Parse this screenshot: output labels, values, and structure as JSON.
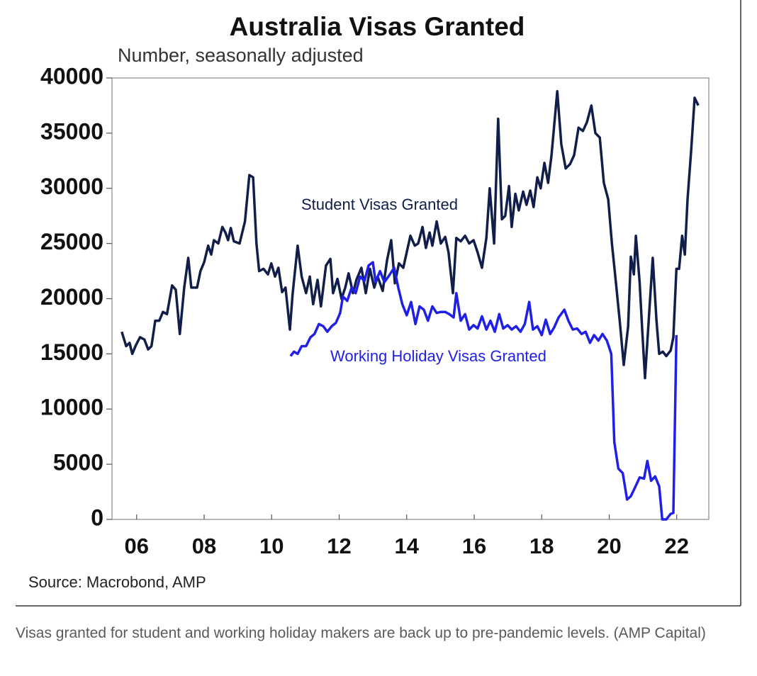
{
  "chart_data": {
    "type": "line",
    "title": "Australia Visas Granted",
    "subtitle": "Number, seasonally adjusted",
    "source": "Source: Macrobond, AMP",
    "xlim": [
      2005.27,
      2022.95
    ],
    "xticks": [
      {
        "value": 2006,
        "label": "06"
      },
      {
        "value": 2008,
        "label": "08"
      },
      {
        "value": 2010,
        "label": "10"
      },
      {
        "value": 2012,
        "label": "12"
      },
      {
        "value": 2014,
        "label": "14"
      },
      {
        "value": 2016,
        "label": "16"
      },
      {
        "value": 2018,
        "label": "18"
      },
      {
        "value": 2020,
        "label": "20"
      },
      {
        "value": 2022,
        "label": "22"
      }
    ],
    "ylim": [
      0,
      40000
    ],
    "yticks": [
      0,
      5000,
      10000,
      15000,
      20000,
      25000,
      30000,
      35000,
      40000
    ],
    "grid": false,
    "series": [
      {
        "name": "Student Visas Granted",
        "color": "#111e4a",
        "x": [
          2005.56,
          2005.69,
          2005.79,
          2005.87,
          2005.98,
          2006.1,
          2006.23,
          2006.34,
          2006.44,
          2006.55,
          2006.67,
          2006.78,
          2006.9,
          2007.05,
          2007.16,
          2007.28,
          2007.41,
          2007.53,
          2007.62,
          2007.79,
          2007.89,
          2008.0,
          2008.12,
          2008.21,
          2008.29,
          2008.42,
          2008.54,
          2008.63,
          2008.71,
          2008.79,
          2008.88,
          2009.05,
          2009.21,
          2009.34,
          2009.45,
          2009.55,
          2009.63,
          2009.76,
          2009.89,
          2009.99,
          2010.1,
          2010.2,
          2010.31,
          2010.41,
          2010.54,
          2010.62,
          2010.77,
          2010.89,
          2011.02,
          2011.13,
          2011.23,
          2011.36,
          2011.46,
          2011.61,
          2011.74,
          2011.82,
          2011.95,
          2012.07,
          2012.18,
          2012.28,
          2012.41,
          2012.51,
          2012.66,
          2012.79,
          2012.91,
          2013.04,
          2013.14,
          2013.29,
          2013.42,
          2013.54,
          2013.65,
          2013.77,
          2013.9,
          2014.0,
          2014.11,
          2014.24,
          2014.34,
          2014.47,
          2014.57,
          2014.68,
          2014.76,
          2014.89,
          2015.01,
          2015.14,
          2015.24,
          2015.37,
          2015.47,
          2015.6,
          2015.73,
          2015.85,
          2015.98,
          2016.1,
          2016.23,
          2016.36,
          2016.46,
          2016.59,
          2016.71,
          2016.82,
          2016.92,
          2017.03,
          2017.11,
          2017.22,
          2017.32,
          2017.45,
          2017.55,
          2017.66,
          2017.76,
          2017.87,
          2017.97,
          2018.08,
          2018.19,
          2018.29,
          2018.46,
          2018.58,
          2018.71,
          2018.84,
          2018.96,
          2019.09,
          2019.22,
          2019.34,
          2019.47,
          2019.59,
          2019.72,
          2019.84,
          2019.97,
          2020.08,
          2020.18,
          2020.31,
          2020.43,
          2020.56,
          2020.64,
          2020.73,
          2020.79,
          2020.9,
          2020.98,
          2021.06,
          2021.17,
          2021.29,
          2021.4,
          2021.48,
          2021.59,
          2021.69,
          2021.82,
          2021.9,
          2021.99,
          2022.07,
          2022.16,
          2022.24,
          2022.32,
          2022.43,
          2022.53,
          2022.64
        ],
        "values": [
          17000,
          15700,
          16000,
          15000,
          15800,
          16500,
          16300,
          15400,
          15700,
          18000,
          18000,
          18800,
          18600,
          21200,
          20800,
          16800,
          21000,
          23700,
          21000,
          21000,
          22500,
          23300,
          24800,
          24000,
          25300,
          25000,
          26500,
          26000,
          25300,
          26400,
          25200,
          25000,
          27000,
          31200,
          31000,
          25000,
          22500,
          22700,
          22200,
          23200,
          22000,
          22800,
          20600,
          21000,
          17200,
          20400,
          24800,
          22000,
          20500,
          22000,
          19500,
          21700,
          19300,
          23000,
          23600,
          20500,
          21800,
          20000,
          21000,
          22300,
          20500,
          21700,
          22800,
          20500,
          22700,
          21000,
          22000,
          20700,
          23500,
          25300,
          21400,
          23200,
          22800,
          24200,
          25700,
          24800,
          25000,
          26500,
          24600,
          26000,
          24800,
          27000,
          25000,
          25600,
          24200,
          20500,
          25500,
          25200,
          25700,
          25000,
          25300,
          24200,
          22800,
          25500,
          30000,
          25000,
          36300,
          27200,
          27500,
          30200,
          26500,
          29500,
          28000,
          29700,
          28500,
          29800,
          28300,
          31000,
          30000,
          32300,
          30500,
          33000,
          38800,
          34000,
          31800,
          32200,
          33000,
          35500,
          35200,
          36000,
          37500,
          35000,
          34600,
          30500,
          29000,
          25000,
          22000,
          18000,
          14000,
          17500,
          23800,
          22200,
          25700,
          21500,
          17000,
          12800,
          18000,
          23700,
          18000,
          15000,
          15200,
          14800,
          15300,
          16500,
          22700,
          22700,
          25700,
          24000,
          29000,
          33500,
          38200,
          37500
        ]
      },
      {
        "name": "Working Holiday Visas Granted",
        "color": "#1f1fe6",
        "x": [
          2010.56,
          2010.66,
          2010.77,
          2010.89,
          2011.02,
          2011.15,
          2011.27,
          2011.4,
          2011.53,
          2011.65,
          2011.78,
          2011.9,
          2012.03,
          2012.11,
          2012.24,
          2012.37,
          2012.49,
          2012.62,
          2012.75,
          2012.87,
          2013.0,
          2013.08,
          2013.21,
          2013.34,
          2013.46,
          2013.63,
          2013.75,
          2013.87,
          2014.0,
          2014.13,
          2014.26,
          2014.38,
          2014.51,
          2014.63,
          2014.76,
          2014.89,
          2015.01,
          2015.14,
          2015.26,
          2015.39,
          2015.47,
          2015.6,
          2015.73,
          2015.85,
          2015.98,
          2016.1,
          2016.23,
          2016.36,
          2016.48,
          2016.61,
          2016.74,
          2016.86,
          2016.99,
          2017.11,
          2017.24,
          2017.37,
          2017.5,
          2017.63,
          2017.74,
          2017.87,
          2018.0,
          2018.12,
          2018.25,
          2018.37,
          2018.5,
          2018.67,
          2018.79,
          2018.92,
          2019.05,
          2019.18,
          2019.3,
          2019.43,
          2019.55,
          2019.68,
          2019.8,
          2019.93,
          2020.06,
          2020.15,
          2020.27,
          2020.4,
          2020.53,
          2020.64,
          2020.78,
          2020.9,
          2021.03,
          2021.13,
          2021.24,
          2021.36,
          2021.48,
          2021.57,
          2021.69,
          2021.82,
          2021.9,
          2021.99
        ],
        "values": [
          14800,
          15200,
          15000,
          15700,
          15700,
          16500,
          16800,
          17700,
          17500,
          17000,
          17500,
          17800,
          18700,
          20200,
          19800,
          21000,
          20500,
          22000,
          21600,
          23000,
          23300,
          21500,
          22500,
          21500,
          22000,
          22800,
          21000,
          19500,
          18500,
          19700,
          17700,
          19300,
          19000,
          18000,
          19300,
          18700,
          18800,
          18800,
          18600,
          18300,
          20500,
          18000,
          18600,
          17200,
          17600,
          17300,
          18400,
          17200,
          18000,
          17000,
          18600,
          17300,
          17600,
          17200,
          17500,
          17000,
          17700,
          19700,
          17200,
          17500,
          16700,
          18100,
          16800,
          17400,
          18300,
          19000,
          18000,
          17200,
          17300,
          16800,
          17000,
          16000,
          16700,
          16200,
          16800,
          16200,
          15000,
          7000,
          4600,
          4200,
          1800,
          2100,
          3000,
          3800,
          3700,
          5300,
          3500,
          3900,
          3000,
          0,
          0,
          500,
          600,
          16700
        ]
      }
    ]
  },
  "caption": "Visas granted for student and working holiday makers are back up to pre-pandemic levels. (AMP Capital)"
}
